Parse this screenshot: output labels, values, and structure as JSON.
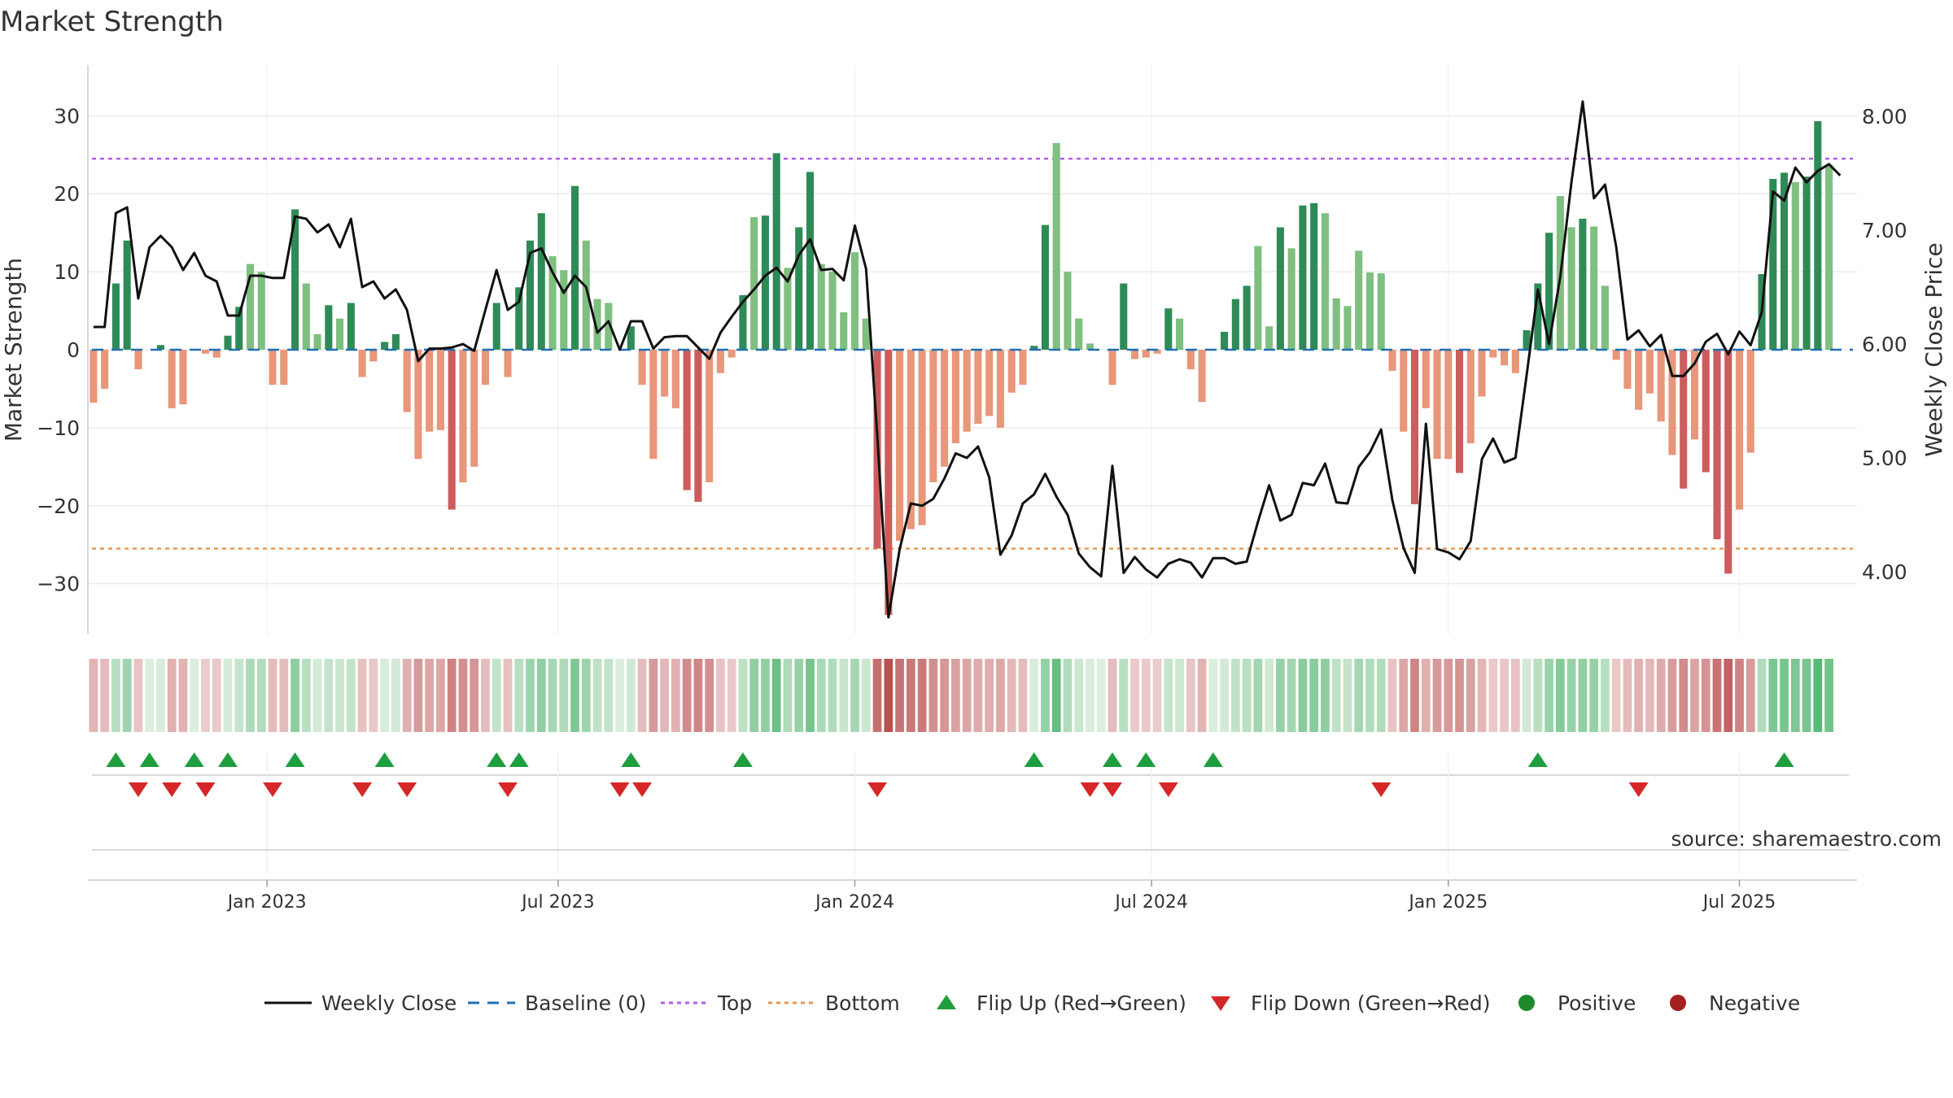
{
  "chart_data": {
    "type": "bar",
    "title": "Market Strength",
    "ylabel": "Market Strength",
    "y2label": "Weekly Close Price",
    "ylim": [
      -36.5,
      36.5
    ],
    "y2lim": [
      3.45,
      8.45
    ],
    "yticks": [
      30,
      20,
      10,
      0,
      -10,
      -20,
      -30
    ],
    "ytick_labels": [
      "30",
      "20",
      "10",
      "0",
      "−10",
      "−20",
      "−30"
    ],
    "y2ticks": [
      8.0,
      7.0,
      6.0,
      5.0,
      4.0
    ],
    "y2tick_labels": [
      "8.00",
      "7.00",
      "6.00",
      "5.00",
      "4.00"
    ],
    "xticks": [
      15.5,
      41.5,
      68,
      94.5,
      121,
      147
    ],
    "xtick_labels": [
      "Jan 2023",
      "Jul 2023",
      "Jan 2024",
      "Jul 2024",
      "Jan 2025",
      "Jul 2025"
    ],
    "x_range": [
      -0.5,
      157.5
    ],
    "top_line": 24.5,
    "bottom_line": -25.5,
    "source": "source: sharemaestro.com",
    "legend": [
      {
        "label": "Weekly Close",
        "kind": "line",
        "color": "#111111"
      },
      {
        "label": "Baseline (0)",
        "kind": "dash",
        "color": "#1f6fb5"
      },
      {
        "label": "Top",
        "kind": "dot",
        "color": "#b05ce6"
      },
      {
        "label": "Bottom",
        "kind": "dot",
        "color": "#e69a55"
      },
      {
        "label": "Flip Up (Red→Green)",
        "kind": "tri-up",
        "color": "#1e9e3e"
      },
      {
        "label": "Flip Down (Green→Red)",
        "kind": "tri-down",
        "color": "#d62728"
      },
      {
        "label": "Positive",
        "kind": "circle",
        "color": "#1e8a2e"
      },
      {
        "label": "Negative",
        "kind": "circle",
        "color": "#a32020"
      }
    ],
    "colors": {
      "pos_strong": "#2e8b57",
      "pos_weak": "#7fbf7f",
      "neg_strong": "#cd5c5c",
      "neg_weak": "#e9967a",
      "baseline": "#1f6fb5",
      "top": "#b05ce6",
      "bottom": "#e69a55",
      "price": "#111111"
    },
    "series": [
      {
        "name": "Market Strength",
        "values": [
          -6.8,
          -5,
          8.5,
          14,
          -2.5,
          0,
          0.6,
          -7.5,
          -7,
          0,
          -0.5,
          -1,
          1.8,
          5.5,
          11,
          10,
          -4.5,
          -4.5,
          18,
          8.5,
          2,
          5.7,
          4,
          6,
          -3.5,
          -1.5,
          1,
          2,
          -8,
          -14,
          -10.5,
          -10.3,
          -20.5,
          -17,
          -15,
          -4.5,
          6,
          -3.5,
          8,
          14,
          17.5,
          12,
          10.2,
          21,
          14,
          6.5,
          6,
          0,
          3,
          -4.5,
          -14,
          -6,
          -7.5,
          -18,
          -19.5,
          -17,
          -3,
          -1,
          7,
          17,
          17.2,
          25.2,
          10.5,
          15.7,
          22.8,
          11,
          10,
          4.8,
          12.5,
          4,
          -25.5,
          -34,
          -24.5,
          -23,
          -22.5,
          -17,
          -15,
          -12,
          -10.5,
          -9.5,
          -8.5,
          -10,
          -5.5,
          -4.5,
          0.5,
          16,
          26.5,
          10,
          4,
          0.8,
          0,
          -4.5,
          8.5,
          -1.2,
          -1,
          -0.5,
          5.3,
          4,
          -2.5,
          -6.7,
          0,
          2.3,
          6.5,
          8.2,
          13.3,
          3,
          15.7,
          13,
          18.5,
          18.8,
          17.5,
          6.6,
          5.6,
          12.7,
          9.9,
          9.8,
          -2.7,
          -10.5,
          -19.8,
          -7.5,
          -14,
          -14,
          -15.8,
          -12,
          -6,
          -1,
          -2,
          -3,
          2.5,
          8.5,
          15,
          19.7,
          15.7,
          16.8,
          15.8,
          8.2,
          -1.3,
          -5,
          -7.7,
          -5.6,
          -9.2,
          -13.5,
          -17.8,
          -11.5,
          -15.7,
          -24.3,
          -28.7,
          -20.5,
          -13.2,
          9.7,
          21.9,
          22.7,
          21.5,
          22.2,
          29.3,
          23.7
        ]
      },
      {
        "name": "Weekly Close",
        "values": [
          6.15,
          6.15,
          7.15,
          7.2,
          6.4,
          6.85,
          6.95,
          6.85,
          6.65,
          6.8,
          6.6,
          6.55,
          6.25,
          6.25,
          6.6,
          6.6,
          6.58,
          6.58,
          7.12,
          7.1,
          6.98,
          7.05,
          6.85,
          7.1,
          6.5,
          6.55,
          6.4,
          6.48,
          6.3,
          5.85,
          5.96,
          5.96,
          5.97,
          6.0,
          5.94,
          6.3,
          6.65,
          6.3,
          6.37,
          6.8,
          6.84,
          6.63,
          6.45,
          6.6,
          6.5,
          6.1,
          6.2,
          5.95,
          6.2,
          6.2,
          5.96,
          6.06,
          6.07,
          6.07,
          5.97,
          5.87,
          6.1,
          6.24,
          6.37,
          6.48,
          6.6,
          6.67,
          6.55,
          6.78,
          6.92,
          6.65,
          6.66,
          6.56,
          7.04,
          6.66,
          5.2,
          3.6,
          4.2,
          4.6,
          4.58,
          4.64,
          4.82,
          5.04,
          5.0,
          5.1,
          4.83,
          4.15,
          4.32,
          4.6,
          4.68,
          4.86,
          4.66,
          4.5,
          4.16,
          4.04,
          3.96,
          4.93,
          3.99,
          4.13,
          4.02,
          3.95,
          4.07,
          4.11,
          4.08,
          3.95,
          4.12,
          4.12,
          4.07,
          4.09,
          4.44,
          4.76,
          4.45,
          4.5,
          4.78,
          4.76,
          4.95,
          4.61,
          4.6,
          4.92,
          5.05,
          5.25,
          4.63,
          4.21,
          3.99,
          5.3,
          4.2,
          4.17,
          4.11,
          4.27,
          4.99,
          5.17,
          4.96,
          5.0,
          5.73,
          6.48,
          6.0,
          6.59,
          7.42,
          8.13,
          7.28,
          7.4,
          6.85,
          6.04,
          6.12,
          5.98,
          6.08,
          5.72,
          5.72,
          5.83,
          6.02,
          6.09,
          5.91,
          6.11,
          5.99,
          6.28,
          7.34,
          7.26,
          7.55,
          7.42,
          7.52,
          7.58,
          7.48
        ]
      }
    ],
    "flip_up": [
      2,
      5,
      9,
      12,
      18,
      26,
      36,
      38,
      48,
      58,
      84,
      91,
      94,
      100,
      129,
      151
    ],
    "flip_down": [
      4,
      7,
      10,
      16,
      24,
      28,
      37,
      47,
      49,
      70,
      89,
      91,
      96,
      115,
      138
    ]
  }
}
